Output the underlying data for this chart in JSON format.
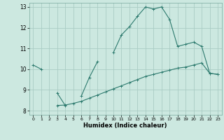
{
  "xlabel": "Humidex (Indice chaleur)",
  "background_color": "#cce8e0",
  "grid_color": "#aaccC4",
  "line_color": "#2d7a6e",
  "xlim": [
    -0.5,
    23.5
  ],
  "ylim": [
    7.8,
    13.2
  ],
  "yticks": [
    8,
    9,
    10,
    11,
    12,
    13
  ],
  "xticks": [
    0,
    1,
    2,
    3,
    4,
    5,
    6,
    7,
    8,
    9,
    10,
    11,
    12,
    13,
    14,
    15,
    16,
    17,
    18,
    19,
    20,
    21,
    22,
    23
  ],
  "line1_x": [
    0,
    1,
    10,
    11,
    12,
    13,
    14,
    15,
    16,
    17,
    18,
    19,
    20,
    21,
    22,
    23
  ],
  "line1_y": [
    10.2,
    10.0,
    10.8,
    11.65,
    12.05,
    12.55,
    13.0,
    12.9,
    13.0,
    12.4,
    11.1,
    11.2,
    11.3,
    11.1,
    9.8,
    9.75
  ],
  "line2_x": [
    3,
    4,
    6,
    7,
    8
  ],
  "line2_y": [
    8.85,
    8.25,
    8.7,
    9.6,
    10.35
  ],
  "line3_x": [
    3,
    4,
    5,
    6,
    7,
    8,
    9,
    10,
    11,
    12,
    13,
    14,
    15,
    16,
    17,
    18,
    19,
    20,
    21,
    22,
    23
  ],
  "line3_y": [
    8.25,
    8.27,
    8.35,
    8.45,
    8.6,
    8.75,
    8.9,
    9.05,
    9.2,
    9.35,
    9.5,
    9.65,
    9.75,
    9.85,
    9.95,
    10.05,
    10.1,
    10.2,
    10.3,
    9.8,
    9.75
  ]
}
